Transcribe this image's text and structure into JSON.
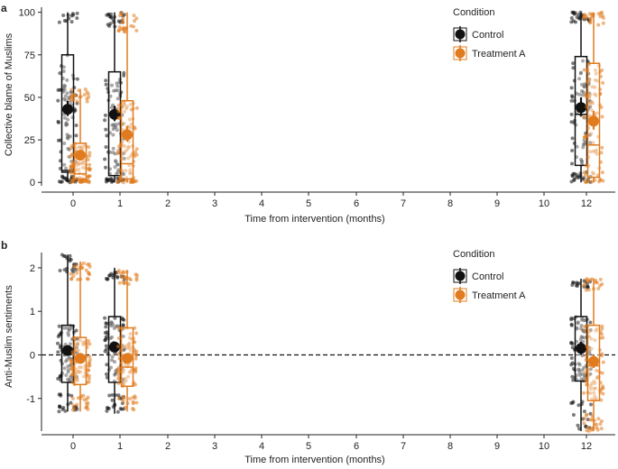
{
  "figure": {
    "panels": [
      "a",
      "b"
    ]
  },
  "colors": {
    "control": "#111111",
    "treatment": "#e07b1f",
    "axis": "#222222"
  },
  "chart_data": [
    {
      "panel": "a",
      "type": "box+scatter",
      "xlabel": "Time from intervention (months)",
      "ylabel": "Collective blame of Muslims",
      "x_ticks": [
        0,
        1,
        2,
        3,
        4,
        5,
        6,
        7,
        8,
        9,
        10,
        12
      ],
      "y_ticks": [
        0,
        25,
        50,
        75,
        100
      ],
      "ylim": [
        -2,
        103
      ],
      "reference_line": null,
      "legend": {
        "title": "Condition",
        "position": "top-right",
        "entries": [
          "Control",
          "Treatment A"
        ]
      },
      "series": [
        {
          "name": "Control",
          "boxes": [
            {
              "month": 0,
              "whisker_low": 0,
              "q1": 6,
              "median": 7,
              "q3": 75,
              "whisker_high": 100,
              "mean": 43,
              "ci": [
                39,
                48
              ]
            },
            {
              "month": 1,
              "whisker_low": 0,
              "q1": 4,
              "median": 40,
              "q3": 65,
              "whisker_high": 100,
              "mean": 40,
              "ci": [
                36,
                45
              ]
            },
            {
              "month": 12,
              "whisker_low": 0,
              "q1": 10,
              "median": 40,
              "q3": 74,
              "whisker_high": 100,
              "mean": 44,
              "ci": [
                39,
                50
              ]
            }
          ]
        },
        {
          "name": "Treatment A",
          "boxes": [
            {
              "month": 0,
              "whisker_low": 0,
              "q1": 2,
              "median": 5,
              "q3": 23,
              "whisker_high": 55,
              "mean": 16,
              "ci": [
                13,
                19
              ]
            },
            {
              "month": 1,
              "whisker_low": 0,
              "q1": 2,
              "median": 11,
              "q3": 48,
              "whisker_high": 100,
              "mean": 28,
              "ci": [
                24,
                33
              ]
            },
            {
              "month": 12,
              "whisker_low": 0,
              "q1": 3,
              "median": 22,
              "q3": 70,
              "whisker_high": 100,
              "mean": 36,
              "ci": [
                31,
                42
              ]
            }
          ]
        }
      ]
    },
    {
      "panel": "b",
      "type": "box+scatter",
      "xlabel": "Time from intervention (months)",
      "ylabel": "Anti-Muslim sentiments",
      "x_ticks": [
        0,
        1,
        2,
        3,
        4,
        5,
        6,
        7,
        8,
        9,
        10,
        12
      ],
      "y_ticks": [
        -1,
        0,
        1,
        2
      ],
      "ylim": [
        -1.75,
        2.35
      ],
      "reference_line": 0,
      "legend": {
        "title": "Condition",
        "position": "top-right",
        "entries": [
          "Control",
          "Treatment A"
        ]
      },
      "series": [
        {
          "name": "Control",
          "boxes": [
            {
              "month": 0,
              "whisker_low": -1.3,
              "q1": -0.63,
              "median": 0.05,
              "q3": 0.68,
              "whisker_high": 2.3,
              "mean": 0.1,
              "ci": [
                -0.02,
                0.22
              ]
            },
            {
              "month": 1,
              "whisker_low": -1.35,
              "q1": -0.63,
              "median": 0.2,
              "q3": 0.88,
              "whisker_high": 2.0,
              "mean": 0.18,
              "ci": [
                0.06,
                0.3
              ]
            },
            {
              "month": 12,
              "whisker_low": -1.75,
              "q1": -0.6,
              "median": 0.15,
              "q3": 0.88,
              "whisker_high": 1.75,
              "mean": 0.15,
              "ci": [
                0.0,
                0.3
              ]
            }
          ]
        },
        {
          "name": "Treatment A",
          "boxes": [
            {
              "month": 0,
              "whisker_low": -1.3,
              "q1": -0.68,
              "median": -0.05,
              "q3": 0.4,
              "whisker_high": 2.15,
              "mean": -0.08,
              "ci": [
                -0.2,
                0.04
              ]
            },
            {
              "month": 1,
              "whisker_low": -1.3,
              "q1": -0.72,
              "median": -0.28,
              "q3": 0.62,
              "whisker_high": 1.95,
              "mean": -0.08,
              "ci": [
                -0.2,
                0.04
              ]
            },
            {
              "month": 12,
              "whisker_low": -1.75,
              "q1": -1.05,
              "median": -0.25,
              "q3": 0.68,
              "whisker_high": 1.75,
              "mean": -0.15,
              "ci": [
                -0.3,
                0.0
              ]
            }
          ]
        }
      ]
    }
  ]
}
